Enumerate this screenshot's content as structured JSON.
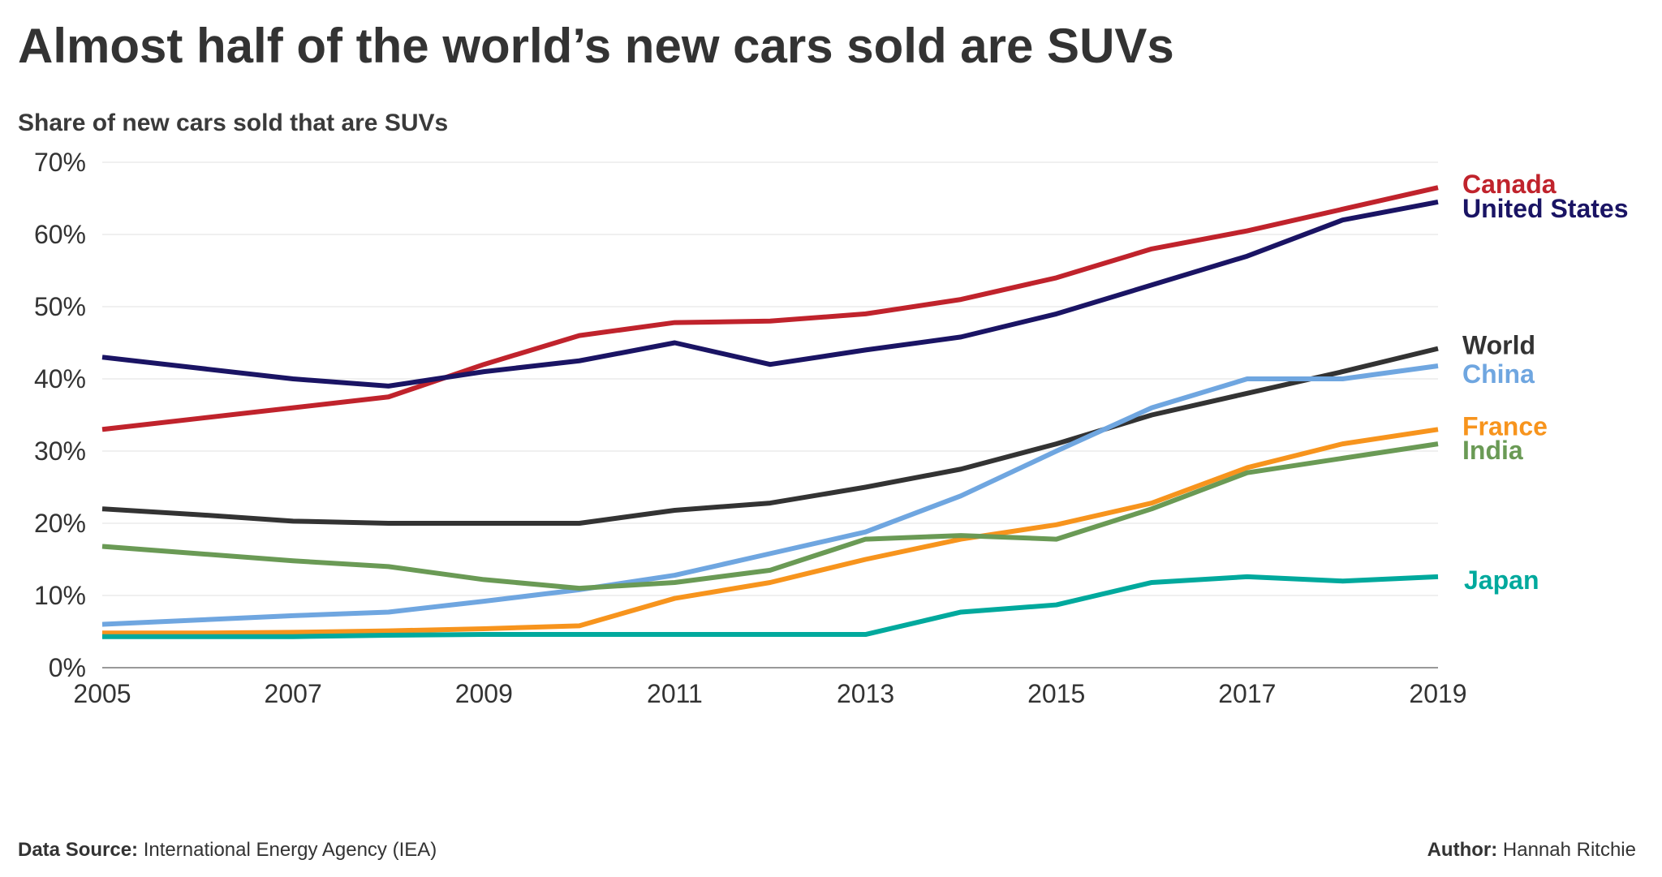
{
  "title": "Almost half of the world’s new cars sold are SUVs",
  "subtitle": "Share of new cars sold that are SUVs",
  "footer": {
    "source_label": "Data Source:",
    "source_value": "International Energy Agency (IEA)",
    "author_label": "Author:",
    "author_value": "Hannah Ritchie"
  },
  "chart_data": {
    "type": "line",
    "title": "Almost half of the world’s new cars sold are SUVs",
    "ylabel": "Share of new cars sold that are SUVs",
    "xlabel": "",
    "x": [
      2005,
      2006,
      2007,
      2008,
      2009,
      2010,
      2011,
      2012,
      2013,
      2014,
      2015,
      2016,
      2017,
      2018,
      2019
    ],
    "xticks": [
      "2005",
      "2007",
      "2009",
      "2011",
      "2013",
      "2015",
      "2017",
      "2019"
    ],
    "yticks": [
      "0%",
      "10%",
      "20%",
      "30%",
      "40%",
      "50%",
      "60%",
      "70%"
    ],
    "ylim": [
      0,
      70
    ],
    "grid": "horizontal",
    "legend": "inline labels at right end of lines",
    "series": [
      {
        "name": "Canada",
        "color": "#c0232c",
        "values": [
          33,
          34.5,
          36,
          37.5,
          42,
          46,
          47.8,
          48,
          49,
          51,
          54,
          58,
          60.5,
          63.5,
          66.5
        ]
      },
      {
        "name": "United States",
        "color": "#1a1464",
        "values": [
          43,
          41.5,
          40,
          39,
          41,
          42.5,
          45,
          42,
          44,
          45.8,
          49,
          53,
          57,
          62,
          64.5
        ]
      },
      {
        "name": "World",
        "color": "#333333",
        "values": [
          22,
          21.2,
          20.3,
          20,
          20,
          20,
          21.8,
          22.8,
          25,
          27.5,
          31,
          35,
          38,
          41,
          44.2
        ]
      },
      {
        "name": "China",
        "color": "#6fa6e0",
        "values": [
          6,
          6.6,
          7.2,
          7.7,
          9.2,
          10.8,
          12.8,
          15.8,
          18.8,
          23.8,
          30,
          36,
          40,
          40,
          41.8
        ]
      },
      {
        "name": "France",
        "color": "#f7941d",
        "values": [
          4.8,
          4.8,
          4.9,
          5.1,
          5.4,
          5.8,
          9.6,
          11.8,
          15,
          17.8,
          19.8,
          22.8,
          27.7,
          31,
          33
        ]
      },
      {
        "name": "India",
        "color": "#6a9a55",
        "values": [
          16.8,
          15.8,
          14.8,
          14,
          12.2,
          11,
          11.8,
          13.5,
          17.8,
          18.3,
          17.8,
          22,
          27,
          29,
          31
        ]
      },
      {
        "name": "Japan",
        "color": "#00a99d",
        "values": [
          4.3,
          4.3,
          4.3,
          4.5,
          4.6,
          4.6,
          4.6,
          4.6,
          4.6,
          7.7,
          8.7,
          11.8,
          12.6,
          12,
          12.6
        ]
      }
    ]
  }
}
